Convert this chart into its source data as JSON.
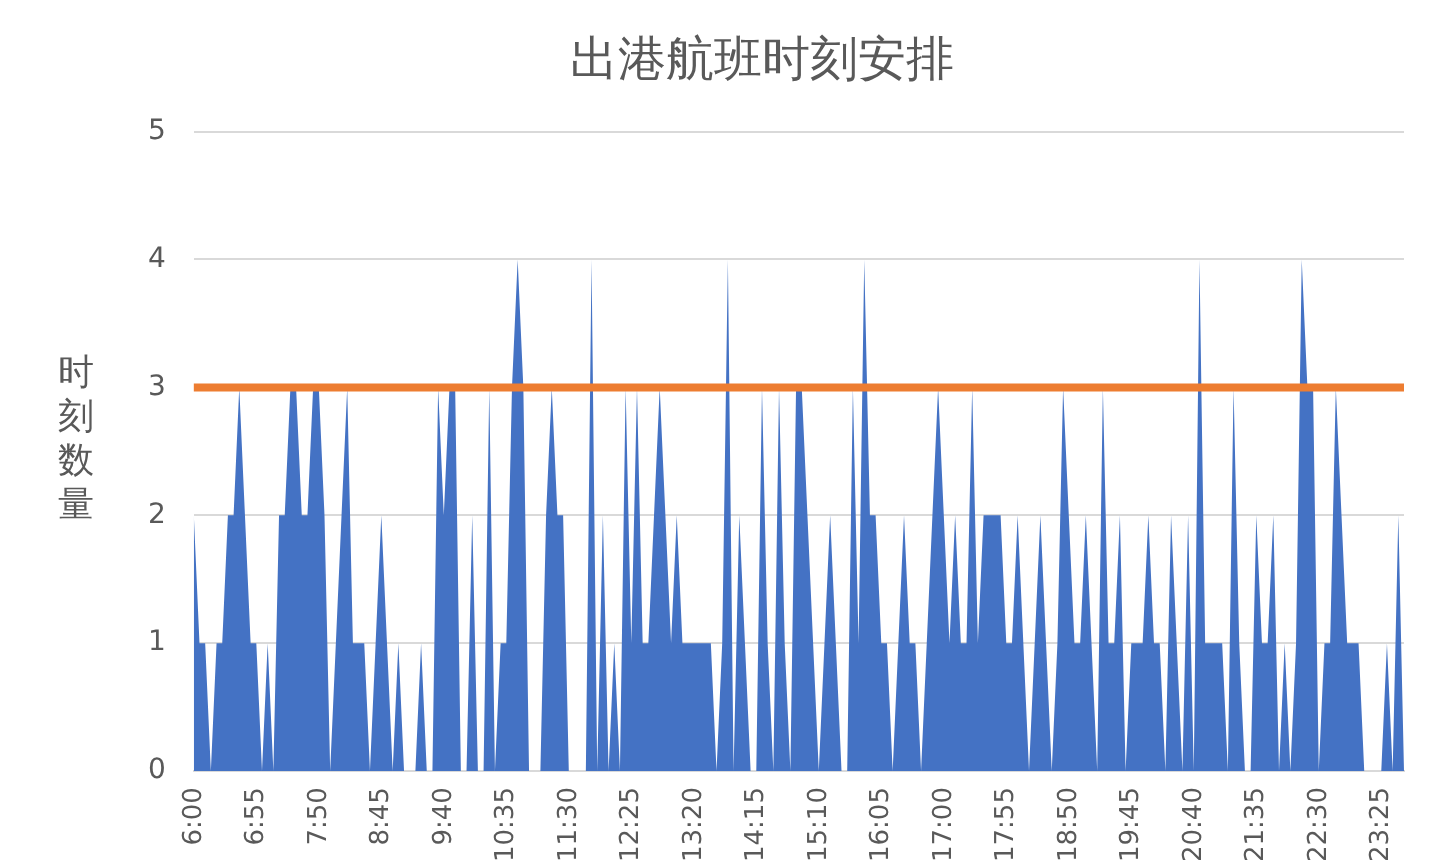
{
  "chart_data": {
    "type": "area",
    "title": "出港航班时刻安排",
    "ylabel": "时刻数量",
    "categories": [
      "6:00",
      null,
      null,
      null,
      null,
      null,
      null,
      null,
      null,
      null,
      null,
      "6:55",
      null,
      null,
      null,
      null,
      null,
      null,
      null,
      null,
      null,
      null,
      "7:50",
      null,
      null,
      null,
      null,
      null,
      null,
      null,
      null,
      null,
      null,
      "8:45",
      null,
      null,
      null,
      null,
      null,
      null,
      null,
      null,
      null,
      null,
      "9:40",
      null,
      null,
      null,
      null,
      null,
      null,
      null,
      null,
      null,
      null,
      "10:35",
      null,
      null,
      null,
      null,
      null,
      null,
      null,
      null,
      null,
      null,
      "11:30",
      null,
      null,
      null,
      null,
      null,
      null,
      null,
      null,
      null,
      null,
      "12:25",
      null,
      null,
      null,
      null,
      null,
      null,
      null,
      null,
      null,
      null,
      "13:20",
      null,
      null,
      null,
      null,
      null,
      null,
      null,
      null,
      null,
      null,
      "14:15",
      null,
      null,
      null,
      null,
      null,
      null,
      null,
      null,
      null,
      null,
      "15:10",
      null,
      null,
      null,
      null,
      null,
      null,
      null,
      null,
      null,
      null,
      "16:05",
      null,
      null,
      null,
      null,
      null,
      null,
      null,
      null,
      null,
      null,
      "17:00",
      null,
      null,
      null,
      null,
      null,
      null,
      null,
      null,
      null,
      null,
      "17:55",
      null,
      null,
      null,
      null,
      null,
      null,
      null,
      null,
      null,
      null,
      "18:50",
      null,
      null,
      null,
      null,
      null,
      null,
      null,
      null,
      null,
      null,
      "19:45",
      null,
      null,
      null,
      null,
      null,
      null,
      null,
      null,
      null,
      null,
      "20:40",
      null,
      null,
      null,
      null,
      null,
      null,
      null,
      null,
      null,
      null,
      "21:35",
      null,
      null,
      null,
      null,
      null,
      null,
      null,
      null,
      null,
      null,
      "22:30",
      null,
      null,
      null,
      null,
      null,
      null,
      null,
      null,
      null,
      null,
      "23:25",
      null,
      null,
      null,
      null
    ],
    "series": [
      {
        "color": "#4472c4",
        "values": [
          2,
          1,
          1,
          0,
          1,
          1,
          2,
          2,
          3,
          2,
          1,
          1,
          0,
          1,
          0,
          2,
          2,
          3,
          3,
          2,
          2,
          3,
          3,
          2,
          0,
          1,
          2,
          3,
          1,
          1,
          1,
          0,
          1,
          2,
          1,
          0,
          1,
          0,
          0,
          0,
          1,
          0,
          0,
          3,
          2,
          3,
          3,
          0,
          0,
          2,
          0,
          0,
          3,
          0,
          1,
          1,
          3,
          4,
          3,
          0,
          0,
          0,
          2,
          3,
          2,
          2,
          0,
          0,
          0,
          0,
          4,
          0,
          2,
          0,
          1,
          0,
          3,
          1,
          3,
          1,
          1,
          2,
          3,
          2,
          1,
          2,
          1,
          1,
          1,
          1,
          1,
          1,
          0,
          1,
          4,
          0,
          2,
          1,
          0,
          0,
          3,
          1,
          0,
          3,
          1,
          0,
          3,
          3,
          2,
          1,
          0,
          1,
          2,
          1,
          0,
          0,
          3,
          1,
          4,
          2,
          2,
          1,
          1,
          0,
          1,
          2,
          1,
          1,
          0,
          1,
          2,
          3,
          2,
          1,
          2,
          1,
          1,
          3,
          1,
          2,
          2,
          2,
          2,
          1,
          1,
          2,
          1,
          0,
          1,
          2,
          1,
          0,
          1,
          3,
          2,
          1,
          1,
          2,
          1,
          0,
          3,
          1,
          1,
          2,
          0,
          1,
          1,
          1,
          2,
          1,
          1,
          0,
          2,
          1,
          0,
          2,
          0,
          4,
          1,
          1,
          1,
          1,
          0,
          3,
          1,
          0,
          0,
          2,
          1,
          1,
          2,
          0,
          1,
          0,
          1,
          4,
          3,
          3,
          0,
          1,
          1,
          3,
          2,
          1,
          1,
          1,
          0,
          0,
          0,
          0,
          1,
          0,
          2,
          0
        ]
      }
    ],
    "ylim": [
      0,
      5
    ],
    "yticks": [
      0,
      1,
      2,
      3,
      4,
      5
    ],
    "grid": "y",
    "legend": false,
    "ref_lines": [
      {
        "axis": "y",
        "value": 3,
        "color": "#ed7d31"
      }
    ]
  }
}
